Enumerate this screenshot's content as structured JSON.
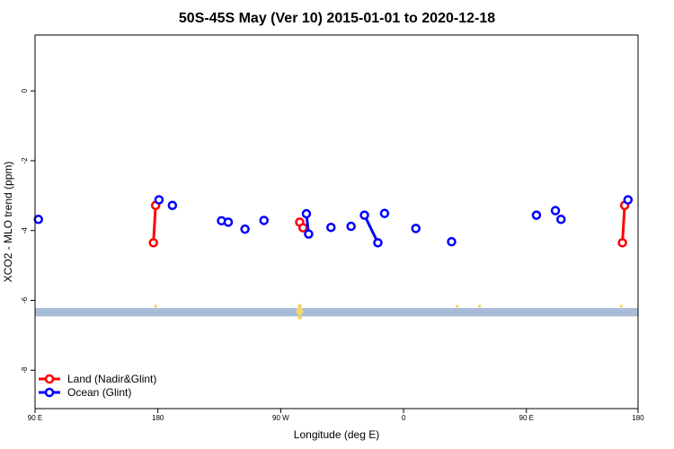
{
  "chart_data": {
    "type": "line",
    "title": "50S-45S May (Ver 10)   2015-01-01 to 2020-12-18",
    "xlabel": "Longitude (deg E)",
    "ylabel": "XCO2 - MLO trend (ppm)",
    "xlim": [
      -90,
      180
    ],
    "ylim": [
      -9.1,
      1.6
    ],
    "x_ticks": [
      {
        "value": -90,
        "label": "90 E"
      },
      {
        "value": -35,
        "label": "180"
      },
      {
        "value": 20,
        "label": "90 W"
      },
      {
        "value": 75,
        "label": "0"
      },
      {
        "value": 130,
        "label": "90 E"
      },
      {
        "value": 180,
        "label": "180"
      }
    ],
    "y_ticks": [
      {
        "value": 0,
        "label": "0"
      },
      {
        "value": -2,
        "label": "-2"
      },
      {
        "value": -4,
        "label": "-4"
      },
      {
        "value": -6,
        "label": "-6"
      },
      {
        "value": -8,
        "label": "-8"
      }
    ],
    "legend_position": "bottom-left",
    "series": [
      {
        "name": "Land (Nadir&Glint)",
        "color": "#ff0000",
        "segments": [
          [
            [
              -37,
              -4.35
            ],
            [
              -36,
              -3.28
            ]
          ],
          [
            [
              28.5,
              -3.76
            ],
            [
              30,
              -3.92
            ]
          ],
          [
            [
              173,
              -4.35
            ],
            [
              174,
              -3.28
            ]
          ]
        ]
      },
      {
        "name": "Ocean (Glint)",
        "color": "#0000ff",
        "segments": [
          [
            [
              -88.5,
              -3.68
            ]
          ],
          [
            [
              -34.5,
              -3.12
            ]
          ],
          [
            [
              -28.5,
              -3.28
            ]
          ],
          [
            [
              -6.5,
              -3.72
            ]
          ],
          [
            [
              -3.5,
              -3.76
            ]
          ],
          [
            [
              4,
              -3.96
            ]
          ],
          [
            [
              12.5,
              -3.71
            ]
          ],
          [
            [
              31.5,
              -3.52
            ],
            [
              32.5,
              -4.1
            ]
          ],
          [
            [
              42.5,
              -3.91
            ]
          ],
          [
            [
              51.5,
              -3.88
            ]
          ],
          [
            [
              57.5,
              -3.56
            ],
            [
              63.5,
              -4.35
            ]
          ],
          [
            [
              66.5,
              -3.51
            ]
          ],
          [
            [
              80.5,
              -3.94
            ]
          ],
          [
            [
              96.5,
              -4.32
            ]
          ],
          [
            [
              134.5,
              -3.56
            ]
          ],
          [
            [
              143,
              -3.43
            ]
          ],
          [
            [
              145.5,
              -3.68
            ]
          ],
          [
            [
              175.5,
              -3.12
            ]
          ]
        ]
      }
    ],
    "land_mask_band": {
      "y_top": -6.22,
      "y_bottom": -6.46,
      "color": "#a8bcd8",
      "land_color": "#f5d76e",
      "land_spots": [
        {
          "x": -36,
          "size": 1
        },
        {
          "x": 28.5,
          "size": 3
        },
        {
          "x": 99,
          "size": 1
        },
        {
          "x": 109,
          "size": 1
        },
        {
          "x": 172.5,
          "size": 1
        }
      ]
    }
  }
}
